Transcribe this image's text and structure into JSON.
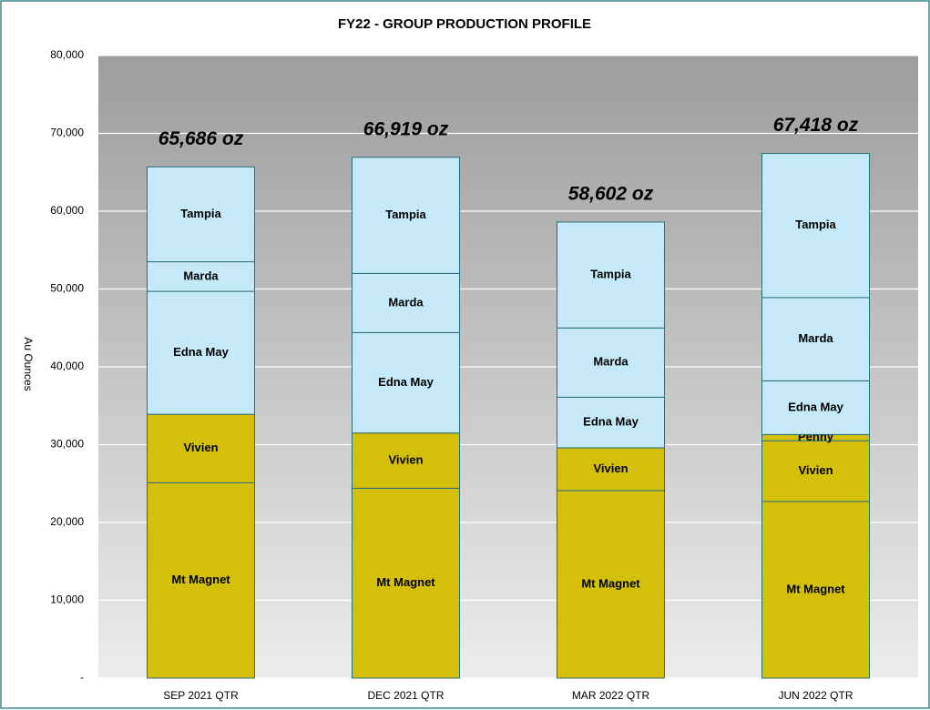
{
  "chart_data": {
    "type": "stacked_bar",
    "title": "FY22 - GROUP PRODUCTION PROFILE",
    "y_label": "Au Ounces",
    "categories": [
      "SEP 2021 QTR",
      "DEC 2021 QTR",
      "MAR 2022 QTR",
      "JUN 2022 QTR"
    ],
    "series": [
      {
        "name": "Mt Magnet",
        "color": "#d4c00a",
        "values": [
          25100,
          24400,
          24100,
          22700
        ]
      },
      {
        "name": "Vivien",
        "color": "#d4c00a",
        "values": [
          8800,
          7100,
          5500,
          7800
        ]
      },
      {
        "name": "Penny",
        "color": "#d4c00a",
        "values": [
          null,
          null,
          null,
          800
        ]
      },
      {
        "name": "Edna May",
        "color": "#c5e9f9",
        "values": [
          15800,
          12900,
          6500,
          6900
        ]
      },
      {
        "name": "Marda",
        "color": "#c5e9f9",
        "values": [
          3800,
          7600,
          8900,
          10700
        ]
      },
      {
        "name": "Tampia",
        "color": "#c5e9f9",
        "values": [
          12186,
          14919,
          13602,
          18518
        ]
      }
    ],
    "totals": [
      65686,
      66919,
      58602,
      67418
    ],
    "total_labels": [
      "65,686 oz",
      "66,919 oz",
      "58,602 oz",
      "67,418 oz"
    ],
    "ylim": [
      0,
      80000
    ],
    "yticks": [
      {
        "value": 0,
        "label": "-"
      },
      {
        "value": 10000,
        "label": "10,000"
      },
      {
        "value": 20000,
        "label": "20,000"
      },
      {
        "value": 30000,
        "label": "30,000"
      },
      {
        "value": 40000,
        "label": "40,000"
      },
      {
        "value": 50000,
        "label": "50,000"
      },
      {
        "value": 60000,
        "label": "60,000"
      },
      {
        "value": 70000,
        "label": "70,000"
      },
      {
        "value": 80000,
        "label": "80,000"
      }
    ],
    "grid": true
  }
}
